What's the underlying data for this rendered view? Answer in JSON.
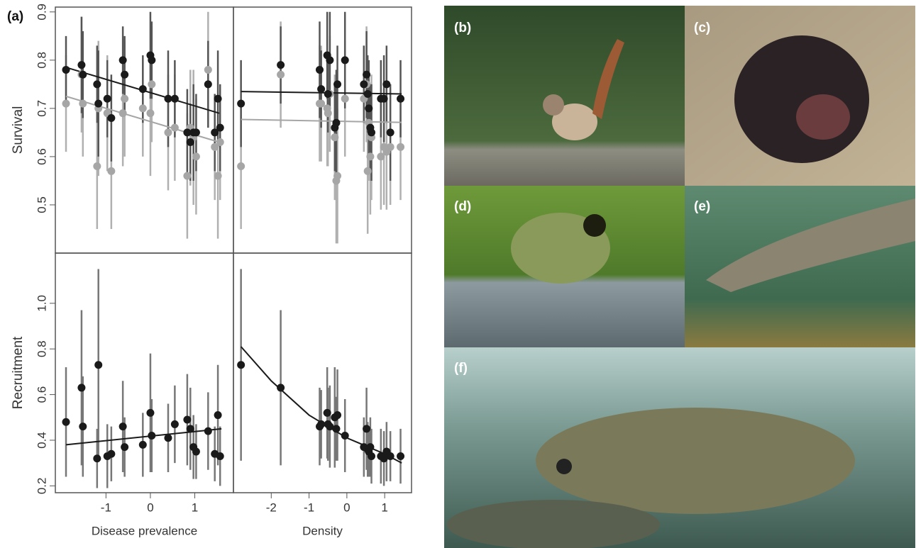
{
  "panel_label": "(a)",
  "chart_data": [
    {
      "type": "scatter",
      "ylabel": "Survival",
      "xlim": [
        -2.14,
        1.87
      ],
      "ylim": [
        0.4,
        0.91
      ],
      "yticks": [
        0.5,
        0.6,
        0.7,
        0.8,
        0.9
      ],
      "series": [
        {
          "color": "#1a1a1a",
          "bar_color": "#555555",
          "x": [
            -1.9,
            -1.55,
            -1.52,
            -1.2,
            -1.17,
            -0.97,
            -0.88,
            -0.62,
            -0.58,
            -0.17,
            0.0,
            0.03,
            0.4,
            0.55,
            0.83,
            0.9,
            0.97,
            1.03,
            1.3,
            1.45,
            1.52,
            1.57
          ],
          "values": [
            0.78,
            0.79,
            0.77,
            0.75,
            0.71,
            0.72,
            0.68,
            0.8,
            0.77,
            0.74,
            0.81,
            0.8,
            0.72,
            0.72,
            0.65,
            0.63,
            0.65,
            0.65,
            0.75,
            0.65,
            0.72,
            0.66
          ],
          "errors": [
            0.07,
            0.1,
            0.09,
            0.08,
            0.11,
            0.08,
            0.09,
            0.07,
            0.08,
            0.07,
            0.09,
            0.08,
            0.1,
            0.08,
            0.09,
            0.08,
            0.1,
            0.08,
            0.09,
            0.08,
            0.1,
            0.09
          ]
        },
        {
          "color": "#a6a6a6",
          "bar_color": "#b0b0b0",
          "x": [
            -1.9,
            -1.55,
            -1.52,
            -1.2,
            -1.17,
            -0.97,
            -0.88,
            -0.62,
            -0.58,
            -0.17,
            0.0,
            0.03,
            0.4,
            0.55,
            0.83,
            0.9,
            0.97,
            1.03,
            1.3,
            1.45,
            1.52,
            1.57
          ],
          "values": [
            0.71,
            0.77,
            0.71,
            0.58,
            0.7,
            0.69,
            0.57,
            0.69,
            0.72,
            0.7,
            0.69,
            0.75,
            0.65,
            0.66,
            0.56,
            0.66,
            0.64,
            0.6,
            0.78,
            0.62,
            0.56,
            0.63
          ],
          "errors": [
            0.1,
            0.12,
            0.11,
            0.13,
            0.14,
            0.12,
            0.12,
            0.11,
            0.12,
            0.1,
            0.13,
            0.12,
            0.12,
            0.11,
            0.13,
            0.12,
            0.14,
            0.12,
            0.12,
            0.11,
            0.13,
            0.12
          ]
        }
      ],
      "fits": [
        {
          "color": "#1a1a1a",
          "x": [
            -1.9,
            1.55
          ],
          "values": [
            0.785,
            0.69
          ]
        },
        {
          "color": "#a6a6a6",
          "x": [
            -1.9,
            1.55
          ],
          "values": [
            0.725,
            0.63
          ]
        }
      ]
    },
    {
      "type": "scatter",
      "xlim": [
        -3.0,
        1.71
      ],
      "ylim": [
        0.4,
        0.91
      ],
      "series": [
        {
          "color": "#1a1a1a",
          "bar_color": "#555555",
          "x": [
            -2.8,
            -1.75,
            -0.72,
            -0.68,
            -0.52,
            -0.5,
            -0.45,
            -0.32,
            -0.28,
            -0.25,
            -0.05,
            0.45,
            0.52,
            0.55,
            0.58,
            0.62,
            0.65,
            0.9,
            0.98,
            1.05,
            1.15,
            1.42
          ],
          "values": [
            0.71,
            0.79,
            0.78,
            0.74,
            0.81,
            0.73,
            0.8,
            0.66,
            0.67,
            0.75,
            0.8,
            0.75,
            0.77,
            0.73,
            0.7,
            0.66,
            0.65,
            0.72,
            0.72,
            0.75,
            0.65,
            0.72
          ],
          "errors": [
            0.09,
            0.08,
            0.1,
            0.08,
            0.09,
            0.08,
            0.1,
            0.09,
            0.11,
            0.08,
            0.1,
            0.08,
            0.09,
            0.08,
            0.1,
            0.09,
            0.1,
            0.08,
            0.09,
            0.08,
            0.1,
            0.08
          ]
        },
        {
          "color": "#a6a6a6",
          "bar_color": "#b0b0b0",
          "x": [
            -2.8,
            -1.75,
            -0.72,
            -0.68,
            -0.52,
            -0.5,
            -0.45,
            -0.32,
            -0.28,
            -0.25,
            -0.05,
            0.45,
            0.52,
            0.55,
            0.58,
            0.62,
            0.65,
            0.9,
            0.98,
            1.05,
            1.15,
            1.42
          ],
          "values": [
            0.58,
            0.77,
            0.71,
            0.71,
            0.7,
            0.69,
            0.73,
            0.64,
            0.55,
            0.56,
            0.72,
            0.72,
            0.75,
            0.57,
            0.67,
            0.6,
            0.64,
            0.6,
            0.62,
            0.61,
            0.62,
            0.62
          ],
          "errors": [
            0.13,
            0.11,
            0.12,
            0.12,
            0.12,
            0.11,
            0.12,
            0.13,
            0.13,
            0.14,
            0.12,
            0.11,
            0.12,
            0.13,
            0.12,
            0.12,
            0.13,
            0.11,
            0.12,
            0.12,
            0.12,
            0.11
          ]
        }
      ],
      "fits": [
        {
          "color": "#1a1a1a",
          "x": [
            -2.8,
            1.45
          ],
          "values": [
            0.735,
            0.73
          ]
        },
        {
          "color": "#a6a6a6",
          "x": [
            -2.8,
            1.45
          ],
          "values": [
            0.677,
            0.671
          ]
        }
      ]
    },
    {
      "type": "scatter",
      "xlabel": "Disease prevalence",
      "ylabel": "Recruitment",
      "xlim": [
        -2.14,
        1.87
      ],
      "ylim": [
        0.17,
        1.22
      ],
      "xticks": [
        -1,
        0,
        1
      ],
      "yticks": [
        0.2,
        0.4,
        0.6,
        0.8,
        {
          "value": 1,
          "label": "1.0"
        }
      ],
      "series": [
        {
          "color": "#1a1a1a",
          "bar_color": "#777777",
          "x": [
            -1.9,
            -1.55,
            -1.52,
            -1.2,
            -1.17,
            -0.97,
            -0.88,
            -0.62,
            -0.58,
            -0.17,
            0.0,
            0.03,
            0.4,
            0.55,
            0.83,
            0.9,
            0.97,
            1.03,
            1.3,
            1.45,
            1.52,
            1.57
          ],
          "values": [
            0.48,
            0.63,
            0.46,
            0.32,
            0.73,
            0.33,
            0.34,
            0.46,
            0.37,
            0.38,
            0.52,
            0.42,
            0.41,
            0.47,
            0.49,
            0.45,
            0.37,
            0.35,
            0.44,
            0.34,
            0.51,
            0.33
          ],
          "errors": [
            0.24,
            0.34,
            0.22,
            0.13,
            0.42,
            0.14,
            0.12,
            0.2,
            0.13,
            0.14,
            0.26,
            0.16,
            0.15,
            0.17,
            0.2,
            0.18,
            0.14,
            0.12,
            0.17,
            0.12,
            0.22,
            0.13
          ]
        }
      ],
      "fits": [
        {
          "color": "#1a1a1a",
          "x": [
            -1.9,
            1.6
          ],
          "values": [
            0.38,
            0.45
          ]
        }
      ]
    },
    {
      "type": "scatter",
      "xlabel": "Density",
      "xlim": [
        -3.0,
        1.71
      ],
      "ylim": [
        0.17,
        1.22
      ],
      "xticks": [
        -2,
        -1,
        0,
        1
      ],
      "series": [
        {
          "color": "#1a1a1a",
          "bar_color": "#777777",
          "x": [
            -2.8,
            -1.75,
            -0.72,
            -0.68,
            -0.52,
            -0.5,
            -0.45,
            -0.32,
            -0.28,
            -0.25,
            -0.05,
            0.45,
            0.52,
            0.55,
            0.58,
            0.62,
            0.65,
            0.9,
            0.98,
            1.05,
            1.15,
            1.42
          ],
          "values": [
            0.73,
            0.63,
            0.46,
            0.47,
            0.52,
            0.47,
            0.46,
            0.5,
            0.45,
            0.51,
            0.42,
            0.37,
            0.45,
            0.36,
            0.35,
            0.37,
            0.33,
            0.33,
            0.32,
            0.35,
            0.33,
            0.33
          ],
          "errors": [
            0.42,
            0.34,
            0.17,
            0.15,
            0.2,
            0.16,
            0.18,
            0.22,
            0.14,
            0.2,
            0.16,
            0.13,
            0.18,
            0.12,
            0.11,
            0.13,
            0.12,
            0.12,
            0.12,
            0.13,
            0.11,
            0.12
          ]
        }
      ],
      "fits": [
        {
          "color": "#1a1a1a",
          "x": [
            -2.8,
            -2,
            -1,
            0,
            1,
            1.45
          ],
          "values": [
            0.81,
            0.66,
            0.51,
            0.41,
            0.34,
            0.3
          ]
        }
      ]
    }
  ],
  "photos": [
    {
      "label": "(b)"
    },
    {
      "label": "(c)"
    },
    {
      "label": "(d)"
    },
    {
      "label": "(e)"
    },
    {
      "label": "(f)"
    }
  ]
}
